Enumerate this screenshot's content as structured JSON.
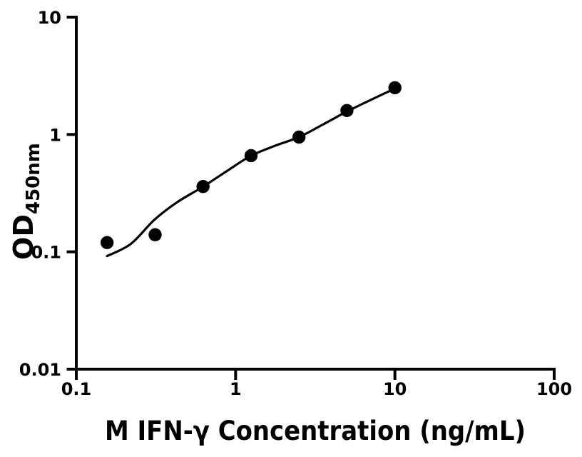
{
  "figure": {
    "background": "#ffffff",
    "ink_color": "#000000"
  },
  "chart_data": {
    "type": "scatter",
    "title": "",
    "xlabel": "M IFN-γ Concentration (ng/mL)",
    "ylabel": "OD",
    "ylabel_subscript": "450nm",
    "x_scale": "log10",
    "y_scale": "log10",
    "xlim": [
      0.1,
      100
    ],
    "ylim": [
      0.01,
      10
    ],
    "x_ticks": [
      0.1,
      1,
      10,
      100
    ],
    "x_tick_labels": [
      "0.1",
      "1",
      "10",
      "100"
    ],
    "y_ticks": [
      0.01,
      0.1,
      1,
      10
    ],
    "y_tick_labels": [
      "0.01",
      "0.1",
      "1",
      "10"
    ],
    "grid": false,
    "legend": "none",
    "series": [
      {
        "name": "fitted-curve",
        "type": "line",
        "color": "#000000",
        "points": [
          {
            "x": 0.156,
            "y": 0.092
          },
          {
            "x": 0.22,
            "y": 0.117
          },
          {
            "x": 0.31,
            "y": 0.188
          },
          {
            "x": 0.43,
            "y": 0.265
          },
          {
            "x": 0.62,
            "y": 0.357
          },
          {
            "x": 0.88,
            "y": 0.487
          },
          {
            "x": 1.24,
            "y": 0.655
          },
          {
            "x": 1.76,
            "y": 0.8
          },
          {
            "x": 2.5,
            "y": 0.95
          },
          {
            "x": 3.55,
            "y": 1.22
          },
          {
            "x": 5.0,
            "y": 1.57
          },
          {
            "x": 7.0,
            "y": 1.96
          },
          {
            "x": 9.92,
            "y": 2.45
          }
        ]
      },
      {
        "name": "standard-points",
        "type": "scatter",
        "marker": "filled-circle",
        "color": "#000000",
        "points": [
          {
            "x": 0.156,
            "y": 0.12
          },
          {
            "x": 0.3125,
            "y": 0.14
          },
          {
            "x": 0.625,
            "y": 0.36
          },
          {
            "x": 1.25,
            "y": 0.66
          },
          {
            "x": 2.5,
            "y": 0.95
          },
          {
            "x": 5,
            "y": 1.6
          },
          {
            "x": 10,
            "y": 2.5
          }
        ]
      }
    ]
  }
}
